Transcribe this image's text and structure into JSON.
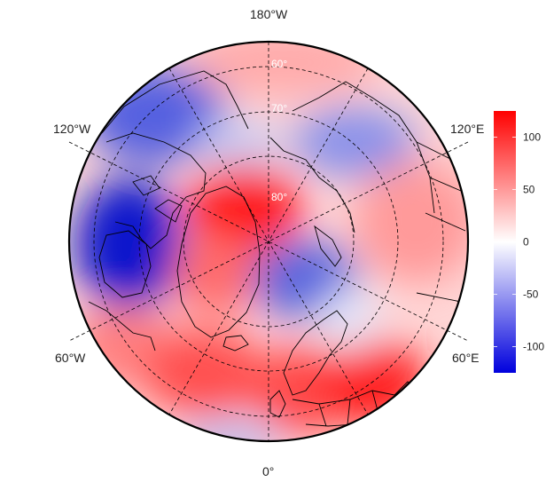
{
  "map": {
    "projection": "north polar stereographic",
    "longitude_labels": {
      "top": "180°W",
      "bottom": "0°",
      "upper_left": "120°W",
      "upper_right": "120°E",
      "lower_left": "60°W",
      "lower_right": "60°E"
    },
    "latitude_labels": [
      "60°",
      "70°",
      "80°"
    ],
    "latitude_circles": [
      60,
      70,
      80
    ],
    "meridian_spacing_deg": 30,
    "colors": {
      "negative": "#0000dd",
      "neutral": "#ffffff",
      "positive": "#ff0000",
      "coastline": "#000000",
      "graticule": "#000000"
    },
    "anomaly_field": [
      {
        "region": "Greenland / North Atlantic",
        "value": 110
      },
      {
        "region": "Alaska / Beaufort Sea",
        "value": -80
      },
      {
        "region": "Canadian Arctic / Hudson Bay",
        "value": -115
      },
      {
        "region": "Barents / Kara Sea",
        "value": -60
      },
      {
        "region": "East Siberian Sea",
        "value": -45
      },
      {
        "region": "Western Europe",
        "value": 95
      },
      {
        "region": "Eastern Europe / Black Sea",
        "value": 105
      },
      {
        "region": "North Pacific",
        "value": 60
      },
      {
        "region": "Central Siberia",
        "value": 50
      },
      {
        "region": "Labrador / Newfoundland",
        "value": 65
      },
      {
        "region": "Central North Atlantic",
        "value": 75
      }
    ]
  },
  "colorbar": {
    "ticks": [
      "100",
      "50",
      "0",
      "-50",
      "-100"
    ],
    "tick_values": [
      100,
      50,
      0,
      -50,
      -100
    ],
    "range": [
      -125,
      125
    ]
  }
}
